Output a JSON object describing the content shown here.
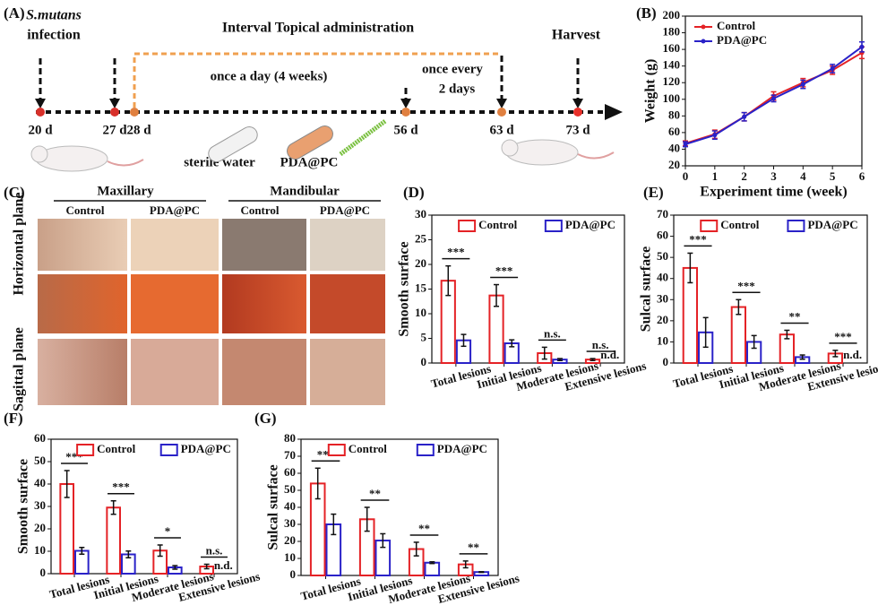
{
  "timeline": {
    "panel": "(A)",
    "species": "S.mutans",
    "infection": "infection",
    "title": "Interval Topical administration",
    "phase1": "once a day (4 weeks)",
    "phase2a": "once every",
    "phase2b": "2 days",
    "harvest": "Harvest",
    "days": [
      "20 d",
      "27 d",
      "28 d",
      "56 d",
      "63 d",
      "73 d"
    ],
    "treatments": [
      "sterile water",
      "PDA@PC"
    ]
  },
  "photo_grid": {
    "panel": "(C)",
    "groups": [
      "Maxillary",
      "Mandibular"
    ],
    "columns": [
      "Control",
      "PDA@PC",
      "Control",
      "PDA@PC"
    ],
    "rows": [
      "Horizontal plane",
      "Sagittal plane"
    ]
  },
  "chart_data": [
    {
      "type": "line",
      "panel": "(B)",
      "xlabel": "Experiment time (week)",
      "ylabel": "Weight (g)",
      "x": [
        0,
        1,
        2,
        3,
        4,
        5,
        6
      ],
      "xlim": [
        0,
        6
      ],
      "xticks": [
        0,
        1,
        2,
        3,
        4,
        5,
        6
      ],
      "ylim": [
        20,
        200
      ],
      "yticks": [
        20,
        40,
        60,
        80,
        100,
        120,
        140,
        160,
        180,
        200
      ],
      "legend": "upper left",
      "series": [
        {
          "name": "Control",
          "color": "#e42226",
          "values": [
            47,
            58,
            79,
            104,
            120,
            135,
            156
          ],
          "errors": [
            3,
            5,
            5,
            5,
            5,
            5,
            7
          ]
        },
        {
          "name": "PDA@PC",
          "color": "#2a22c8",
          "values": [
            46,
            57,
            79,
            101,
            118,
            137,
            163
          ],
          "errors": [
            3,
            5,
            5,
            4,
            5,
            5,
            6
          ]
        }
      ]
    },
    {
      "type": "bar",
      "panel": "(D)",
      "ylabel": "Smooth surface",
      "categories": [
        "Total lesions",
        "Initial lesions",
        "Moderate lesions",
        "Extensive lesions"
      ],
      "ylim": [
        0,
        30
      ],
      "yticks": [
        0,
        5,
        10,
        15,
        20,
        25,
        30
      ],
      "legend": "upper center",
      "series": [
        {
          "name": "Control",
          "color": "#e42226",
          "values": [
            16.7,
            13.7,
            2.0,
            0.7
          ],
          "errors": [
            3,
            2.2,
            1.2,
            0.2
          ]
        },
        {
          "name": "PDA@PC",
          "color": "#2a22c8",
          "values": [
            4.6,
            4.0,
            0.7,
            null
          ],
          "errors": [
            1.2,
            0.7,
            0.2,
            null
          ]
        }
      ],
      "significance": [
        "***",
        "***",
        "n.s.",
        "n.s."
      ],
      "annotations": [
        {
          "text": "n.d.",
          "category": "Extensive lesions"
        }
      ]
    },
    {
      "type": "bar",
      "panel": "(E)",
      "ylabel": "Sulcal surface",
      "categories": [
        "Total lesions",
        "Initial lesions",
        "Moderate lesions",
        "Extensive lesions"
      ],
      "ylim": [
        0,
        70
      ],
      "yticks": [
        0,
        10,
        20,
        30,
        40,
        50,
        60,
        70
      ],
      "legend": "upper center",
      "series": [
        {
          "name": "Control",
          "color": "#e42226",
          "values": [
            45,
            26.5,
            13.5,
            4.5
          ],
          "errors": [
            7,
            3.5,
            2,
            1.5
          ]
        },
        {
          "name": "PDA@PC",
          "color": "#2a22c8",
          "values": [
            14.5,
            10,
            2.8,
            null
          ],
          "errors": [
            7,
            3,
            1,
            null
          ]
        }
      ],
      "significance": [
        "***",
        "***",
        "**",
        "***"
      ],
      "annotations": [
        {
          "text": "n.d.",
          "category": "Extensive lesions"
        }
      ]
    },
    {
      "type": "bar",
      "panel": "(F)",
      "ylabel": "Smooth surface",
      "categories": [
        "Total lesions",
        "Initial lesions",
        "Moderate lesions",
        "Extensive lesions"
      ],
      "ylim": [
        0,
        60
      ],
      "yticks": [
        0,
        10,
        20,
        30,
        40,
        50,
        60
      ],
      "legend": "upper center",
      "series": [
        {
          "name": "Control",
          "color": "#e42226",
          "values": [
            40,
            29.5,
            10.3,
            3.2
          ],
          "errors": [
            6,
            3,
            2.5,
            1
          ]
        },
        {
          "name": "PDA@PC",
          "color": "#2a22c8",
          "values": [
            10.2,
            8.6,
            2.8,
            null
          ],
          "errors": [
            1.5,
            1.5,
            0.8,
            null
          ]
        }
      ],
      "significance": [
        "***",
        "***",
        "*",
        "n.s."
      ],
      "annotations": [
        {
          "text": "n.d.",
          "category": "Extensive lesions"
        }
      ]
    },
    {
      "type": "bar",
      "panel": "(G)",
      "ylabel": "Sulcal surface",
      "categories": [
        "Total lesions",
        "Initial lesions",
        "Moderate lesions",
        "Extensive lesions"
      ],
      "ylim": [
        0,
        80
      ],
      "yticks": [
        0,
        10,
        20,
        30,
        40,
        50,
        60,
        70,
        80
      ],
      "legend": "upper center",
      "series": [
        {
          "name": "Control",
          "color": "#e42226",
          "values": [
            54,
            33,
            15.5,
            6.5
          ],
          "errors": [
            9,
            7,
            4,
            2
          ]
        },
        {
          "name": "PDA@PC",
          "color": "#2a22c8",
          "values": [
            30,
            20.5,
            7.5,
            2
          ],
          "errors": [
            6,
            4,
            0.5,
            0.2
          ]
        }
      ],
      "significance": [
        "***",
        "**",
        "**",
        "**"
      ]
    }
  ]
}
